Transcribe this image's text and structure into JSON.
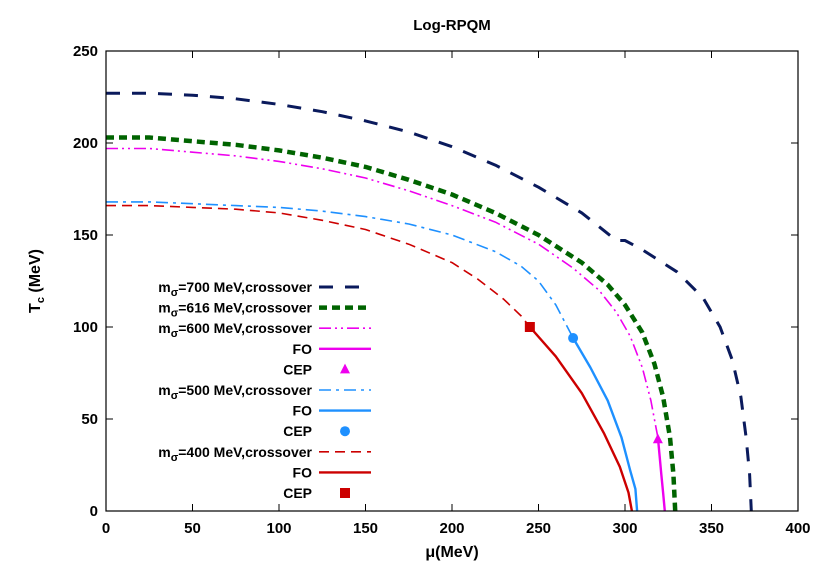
{
  "chart_data": {
    "type": "line",
    "title": "Log-RPQM",
    "xlabel": "μ(MeV)",
    "ylabel_main": "T",
    "ylabel_sub": "c",
    "ylabel_unit": " (MeV)",
    "xlim": [
      0,
      400
    ],
    "ylim": [
      0,
      250
    ],
    "xticks": [
      0,
      50,
      100,
      150,
      200,
      250,
      300,
      350,
      400
    ],
    "yticks": [
      0,
      50,
      100,
      150,
      200,
      250
    ],
    "grid": false,
    "legend_position": "left",
    "series": [
      {
        "id": "s700",
        "prefix": "m",
        "sub": "σ",
        "name": "=700 MeV,crossover",
        "kind": "line",
        "color": "#0a1a5c",
        "style": "dash-long",
        "points": [
          [
            0,
            227
          ],
          [
            25,
            227
          ],
          [
            50,
            226
          ],
          [
            75,
            224
          ],
          [
            100,
            221
          ],
          [
            125,
            217
          ],
          [
            150,
            212
          ],
          [
            175,
            206
          ],
          [
            200,
            198
          ],
          [
            225,
            188
          ],
          [
            250,
            176
          ],
          [
            275,
            162
          ],
          [
            295,
            147
          ],
          [
            300,
            147
          ],
          [
            310,
            142
          ],
          [
            330,
            130
          ],
          [
            345,
            116
          ],
          [
            355,
            100
          ],
          [
            362,
            82
          ],
          [
            367,
            62
          ],
          [
            370,
            40
          ],
          [
            372,
            20
          ],
          [
            373,
            0
          ]
        ]
      },
      {
        "id": "s616",
        "prefix": "m",
        "sub": "σ",
        "name": "=616 MeV,crossover",
        "kind": "line",
        "color": "#006400",
        "style": "dash-thick",
        "points": [
          [
            0,
            203
          ],
          [
            25,
            203
          ],
          [
            50,
            201
          ],
          [
            75,
            199
          ],
          [
            100,
            196
          ],
          [
            125,
            192
          ],
          [
            150,
            187
          ],
          [
            175,
            180
          ],
          [
            200,
            172
          ],
          [
            225,
            162
          ],
          [
            250,
            150
          ],
          [
            275,
            135
          ],
          [
            290,
            123
          ],
          [
            300,
            112
          ],
          [
            310,
            97
          ],
          [
            317,
            80
          ],
          [
            322,
            62
          ],
          [
            326,
            40
          ],
          [
            328,
            20
          ],
          [
            329,
            0
          ]
        ]
      },
      {
        "id": "s600",
        "prefix": "m",
        "sub": "σ",
        "name": "=600 MeV,crossover",
        "kind": "line",
        "color": "#ee00ee",
        "style": "dash-dot-dot",
        "points": [
          [
            0,
            197
          ],
          [
            25,
            197
          ],
          [
            50,
            195
          ],
          [
            75,
            193
          ],
          [
            100,
            190
          ],
          [
            125,
            186
          ],
          [
            150,
            181
          ],
          [
            175,
            174
          ],
          [
            200,
            166
          ],
          [
            225,
            157
          ],
          [
            250,
            145
          ],
          [
            270,
            132
          ],
          [
            285,
            120
          ],
          [
            295,
            108
          ],
          [
            303,
            95
          ],
          [
            310,
            78
          ],
          [
            315,
            60
          ],
          [
            318,
            45
          ],
          [
            319,
            40
          ]
        ]
      },
      {
        "id": "fo600",
        "prefix": "",
        "sub": "",
        "name": "FO",
        "kind": "line",
        "color": "#ee00ee",
        "style": "solid",
        "points": [
          [
            319,
            40
          ],
          [
            320,
            30
          ],
          [
            321,
            20
          ],
          [
            322,
            10
          ],
          [
            323,
            0
          ]
        ]
      },
      {
        "id": "cep600",
        "prefix": "",
        "sub": "",
        "name": "CEP",
        "kind": "marker",
        "marker": "triangle",
        "color": "#ee00ee",
        "points": [
          [
            319,
            39
          ]
        ]
      },
      {
        "id": "s500",
        "prefix": "m",
        "sub": "σ",
        "name": "=500 MeV,crossover",
        "kind": "line",
        "color": "#1e90ff",
        "style": "dash-dot",
        "points": [
          [
            0,
            168
          ],
          [
            25,
            168
          ],
          [
            50,
            167
          ],
          [
            75,
            166
          ],
          [
            100,
            165
          ],
          [
            125,
            163
          ],
          [
            150,
            160
          ],
          [
            175,
            156
          ],
          [
            200,
            150
          ],
          [
            225,
            141
          ],
          [
            240,
            133
          ],
          [
            250,
            125
          ],
          [
            260,
            112
          ],
          [
            270,
            94
          ]
        ]
      },
      {
        "id": "fo500",
        "prefix": "",
        "sub": "",
        "name": "FO",
        "kind": "line",
        "color": "#1e90ff",
        "style": "solid",
        "points": [
          [
            270,
            94
          ],
          [
            280,
            78
          ],
          [
            290,
            60
          ],
          [
            298,
            40
          ],
          [
            303,
            22
          ],
          [
            306,
            12
          ],
          [
            307,
            0
          ]
        ]
      },
      {
        "id": "cep500",
        "prefix": "",
        "sub": "",
        "name": "CEP",
        "kind": "marker",
        "marker": "circle",
        "color": "#1e90ff",
        "points": [
          [
            270,
            94
          ]
        ]
      },
      {
        "id": "s400",
        "prefix": "m",
        "sub": "σ",
        "name": "=400 MeV,crossover",
        "kind": "line",
        "color": "#cc0000",
        "style": "dash-medium",
        "points": [
          [
            0,
            166
          ],
          [
            25,
            166
          ],
          [
            50,
            165
          ],
          [
            75,
            164
          ],
          [
            100,
            162
          ],
          [
            125,
            158
          ],
          [
            150,
            153
          ],
          [
            175,
            145
          ],
          [
            200,
            135
          ],
          [
            215,
            126
          ],
          [
            230,
            115
          ],
          [
            240,
            106
          ],
          [
            245,
            100
          ]
        ]
      },
      {
        "id": "fo400",
        "prefix": "",
        "sub": "",
        "name": "FO",
        "kind": "line",
        "color": "#cc0000",
        "style": "solid",
        "points": [
          [
            245,
            100
          ],
          [
            260,
            84
          ],
          [
            275,
            64
          ],
          [
            288,
            42
          ],
          [
            297,
            24
          ],
          [
            302,
            10
          ],
          [
            304,
            0
          ]
        ]
      },
      {
        "id": "cep400",
        "prefix": "",
        "sub": "",
        "name": "CEP",
        "kind": "marker",
        "marker": "square",
        "color": "#cc0000",
        "points": [
          [
            245,
            100
          ]
        ]
      }
    ]
  }
}
